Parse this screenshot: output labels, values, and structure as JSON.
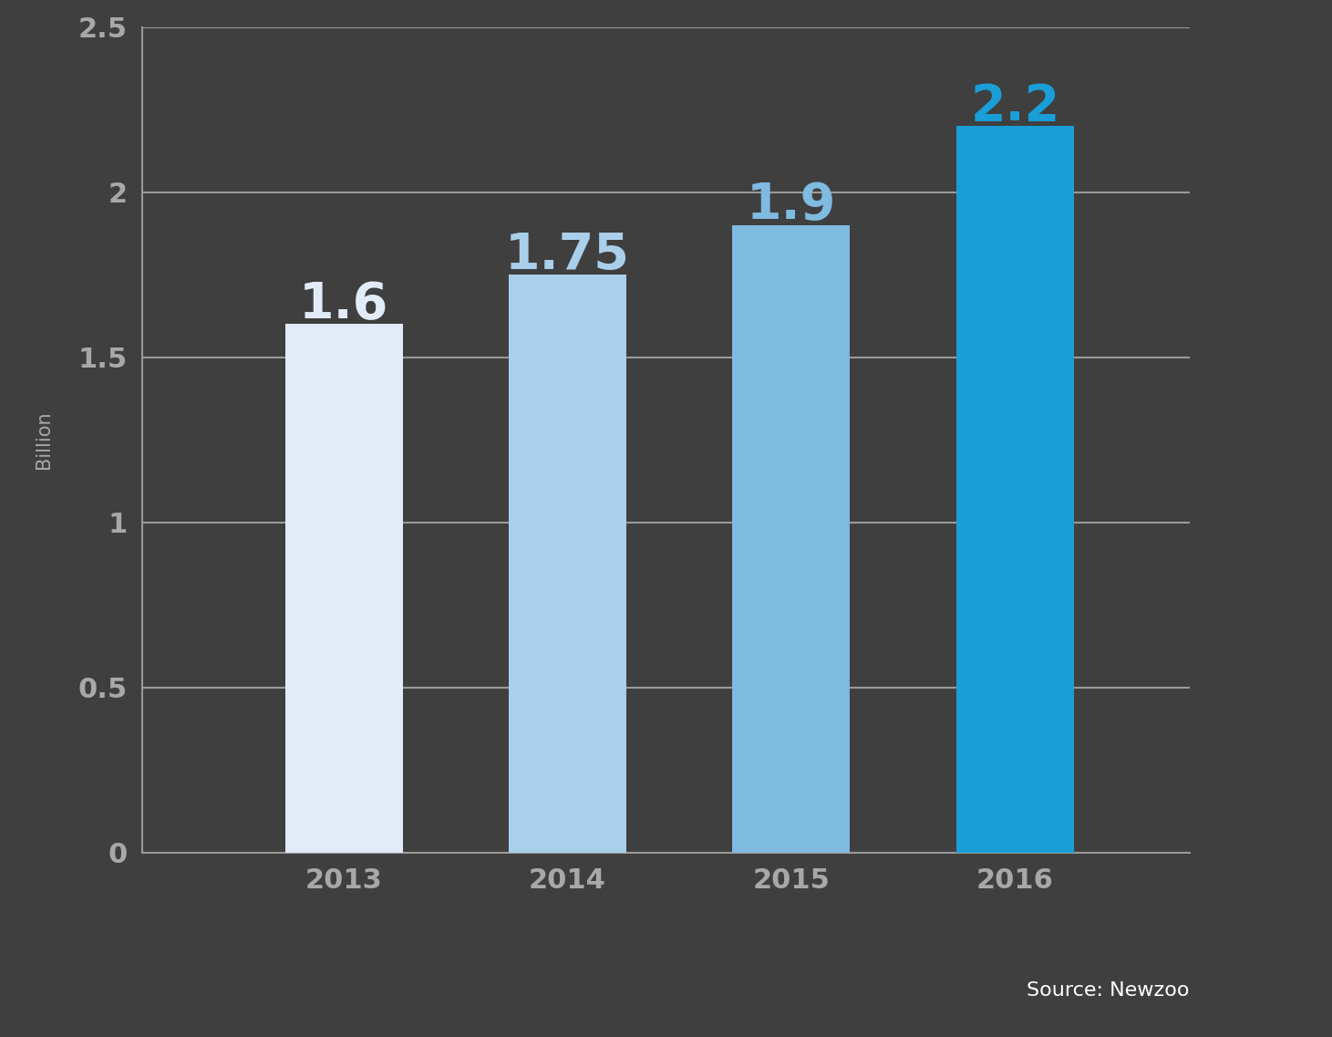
{
  "chart_data": {
    "type": "bar",
    "categories": [
      "2013",
      "2014",
      "2015",
      "2016"
    ],
    "values": [
      1.6,
      1.75,
      1.9,
      2.2
    ],
    "colors": [
      "#e1ecf8",
      "#aacfea",
      "#7fbae1",
      "#1a9ed8"
    ],
    "y_label": "Billion",
    "ylim": [
      0,
      2.5
    ],
    "yticks": [
      0,
      0.5,
      1,
      1.5,
      2,
      2.5
    ],
    "grid": true,
    "data_labels": true,
    "source": "Source: Newzoo"
  }
}
